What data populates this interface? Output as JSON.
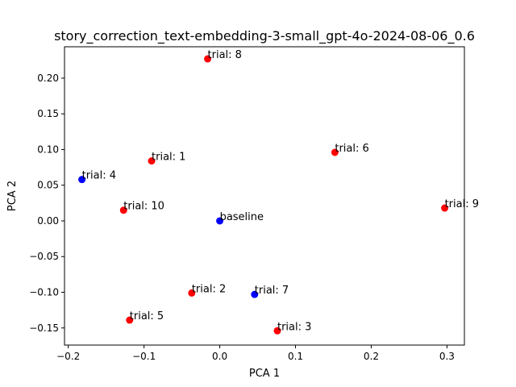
{
  "chart_data": {
    "type": "scatter",
    "title": "story_correction_text-embedding-3-small_gpt-4o-2024-08-06_0.6",
    "xlabel": "PCA 1",
    "ylabel": "PCA 2",
    "xlim": [
      -0.205,
      0.323
    ],
    "ylim": [
      -0.174,
      0.244
    ],
    "xticks": [
      -0.2,
      -0.1,
      0.0,
      0.1,
      0.2,
      0.3
    ],
    "xtick_labels": [
      "−0.2",
      "−0.1",
      "0.0",
      "0.1",
      "0.2",
      "0.3"
    ],
    "yticks": [
      -0.15,
      -0.1,
      -0.05,
      0.0,
      0.05,
      0.1,
      0.15,
      0.2
    ],
    "ytick_labels": [
      "−0.15",
      "−0.10",
      "−0.05",
      "0.00",
      "0.05",
      "0.10",
      "0.15",
      "0.20"
    ],
    "grid": false,
    "colors": {
      "red": "#ff0000",
      "blue": "#0000ff"
    },
    "points": [
      {
        "label": "trial: 8",
        "x": -0.016,
        "y": 0.227,
        "color": "red"
      },
      {
        "label": "trial: 1",
        "x": -0.09,
        "y": 0.084,
        "color": "red"
      },
      {
        "label": "trial: 6",
        "x": 0.152,
        "y": 0.096,
        "color": "red"
      },
      {
        "label": "trial: 4",
        "x": -0.182,
        "y": 0.058,
        "color": "blue"
      },
      {
        "label": "trial: 10",
        "x": -0.127,
        "y": 0.015,
        "color": "red"
      },
      {
        "label": "baseline",
        "x": 0.0,
        "y": 0.0,
        "color": "blue"
      },
      {
        "label": "trial: 9",
        "x": 0.297,
        "y": 0.018,
        "color": "red"
      },
      {
        "label": "trial: 2",
        "x": -0.037,
        "y": -0.101,
        "color": "red"
      },
      {
        "label": "trial: 7",
        "x": 0.046,
        "y": -0.103,
        "color": "blue"
      },
      {
        "label": "trial: 5",
        "x": -0.119,
        "y": -0.139,
        "color": "red"
      },
      {
        "label": "trial: 3",
        "x": 0.076,
        "y": -0.154,
        "color": "red"
      }
    ]
  }
}
